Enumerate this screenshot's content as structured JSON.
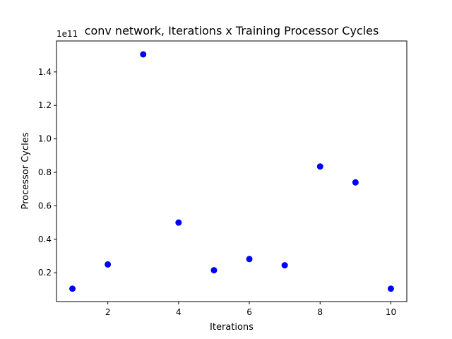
{
  "chart_data": {
    "type": "scatter",
    "title": "conv network, Iterations x Training Processor Cycles",
    "xlabel": "Iterations",
    "ylabel": "Processor Cycles",
    "y_offset_label": "1e11",
    "x": [
      1,
      2,
      3,
      4,
      5,
      6,
      7,
      8,
      9,
      10
    ],
    "y": [
      0.105,
      0.25,
      1.505,
      0.5,
      0.215,
      0.282,
      0.245,
      0.835,
      0.74,
      0.105
    ],
    "xlim": [
      0.55,
      10.45
    ],
    "ylim": [
      0.028,
      1.585
    ],
    "x_ticks": [
      "2",
      "4",
      "6",
      "8",
      "10"
    ],
    "y_ticks": [
      "0.2",
      "0.4",
      "0.6",
      "0.8",
      "1.0",
      "1.2",
      "1.4"
    ],
    "grid": false,
    "marker_color": "#0000ff"
  }
}
